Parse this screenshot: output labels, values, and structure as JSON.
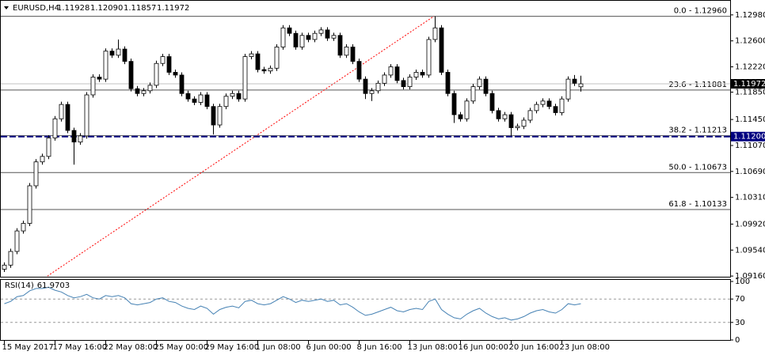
{
  "chart_data": [
    {
      "type": "candlestick",
      "title": "EURUSD,H4",
      "header_labels": [
        "1.11928",
        "1.12090",
        "1.11857",
        "1.11972"
      ],
      "categories": [
        "15 May 2017",
        null,
        null,
        null,
        null,
        null,
        null,
        null,
        "17 May 16:00",
        null,
        null,
        null,
        null,
        null,
        null,
        null,
        "22 May 08:00",
        null,
        null,
        null,
        null,
        null,
        null,
        null,
        "25 May 00:00",
        null,
        null,
        null,
        null,
        null,
        null,
        null,
        "29 May 16:00",
        null,
        null,
        null,
        null,
        null,
        null,
        null,
        "1 Jun 08:00",
        null,
        null,
        null,
        null,
        null,
        null,
        null,
        "6 Jun 00:00",
        null,
        null,
        null,
        null,
        null,
        null,
        null,
        "8 Jun 16:00",
        null,
        null,
        null,
        null,
        null,
        null,
        null,
        "13 Jun 08:00",
        null,
        null,
        null,
        null,
        null,
        null,
        null,
        "16 Jun 00:00",
        null,
        null,
        null,
        null,
        null,
        null,
        null,
        "20 Jun 16:00",
        null,
        null,
        null,
        null,
        null,
        null,
        null,
        "23 Jun 08:00",
        null,
        null,
        null
      ],
      "open": [
        1.0926,
        1.0932,
        1.0952,
        1.0982,
        1.0993,
        1.1048,
        1.1083,
        1.1091,
        1.1118,
        1.1146,
        1.1167,
        1.1129,
        1.1112,
        1.1121,
        1.1181,
        1.1207,
        1.1204,
        1.1245,
        1.1239,
        1.1248,
        1.123,
        1.119,
        1.1183,
        1.1187,
        1.1195,
        1.1227,
        1.1237,
        1.1214,
        1.121,
        1.1183,
        1.1175,
        1.117,
        1.1181,
        1.1164,
        1.1137,
        1.1164,
        1.1179,
        1.1183,
        1.1175,
        1.1237,
        1.1241,
        1.1218,
        1.1216,
        1.122,
        1.1251,
        1.1279,
        1.1271,
        1.1251,
        1.1268,
        1.1262,
        1.1271,
        1.1276,
        1.1264,
        1.1268,
        1.1239,
        1.1251,
        1.123,
        1.1204,
        1.1183,
        1.1187,
        1.1198,
        1.121,
        1.1222,
        1.1202,
        1.1193,
        1.1207,
        1.1214,
        1.121,
        1.1262,
        1.1279,
        1.1214,
        1.1183,
        1.1152,
        1.1146,
        1.1172,
        1.1193,
        1.1204,
        1.1183,
        1.1158,
        1.1146,
        1.1152,
        1.1133,
        1.1135,
        1.1144,
        1.1158,
        1.1167,
        1.1172,
        1.1164,
        1.1155,
        1.1175,
        1.1204,
        1.11928
      ],
      "high": [
        1.0936,
        1.0956,
        1.0986,
        1.0997,
        1.1052,
        1.1087,
        1.1095,
        1.1122,
        1.115,
        1.1171,
        1.1171,
        1.1133,
        1.1125,
        1.1185,
        1.1211,
        1.1211,
        1.1249,
        1.1249,
        1.1262,
        1.1252,
        1.1234,
        1.1194,
        1.1191,
        1.1199,
        1.1231,
        1.1241,
        1.1241,
        1.1218,
        1.1214,
        1.1187,
        1.1179,
        1.1185,
        1.1185,
        1.1168,
        1.1168,
        1.1183,
        1.1187,
        1.1187,
        1.1241,
        1.1245,
        1.1245,
        1.1222,
        1.1224,
        1.1255,
        1.1283,
        1.1283,
        1.1275,
        1.1272,
        1.1272,
        1.1275,
        1.128,
        1.128,
        1.1272,
        1.1272,
        1.1255,
        1.1255,
        1.1234,
        1.1208,
        1.1191,
        1.1202,
        1.1214,
        1.1226,
        1.1226,
        1.1206,
        1.1211,
        1.1218,
        1.1218,
        1.1266,
        1.1296,
        1.1283,
        1.1218,
        1.1187,
        1.1156,
        1.1176,
        1.1197,
        1.1208,
        1.1208,
        1.1187,
        1.1162,
        1.1156,
        1.1156,
        1.1139,
        1.1148,
        1.1162,
        1.1171,
        1.1176,
        1.1176,
        1.1168,
        1.1179,
        1.1208,
        1.121,
        1.1209
      ],
      "low": [
        1.0922,
        1.0928,
        1.0948,
        1.0978,
        1.0989,
        1.1044,
        1.1079,
        1.1087,
        1.1114,
        1.1142,
        1.1125,
        1.1079,
        1.1108,
        1.1117,
        1.1177,
        1.12,
        1.12,
        1.1235,
        1.1235,
        1.1226,
        1.1186,
        1.1179,
        1.1179,
        1.1183,
        1.1191,
        1.1223,
        1.121,
        1.1206,
        1.1179,
        1.1171,
        1.1166,
        1.1166,
        1.116,
        1.1123,
        1.1133,
        1.116,
        1.1175,
        1.1171,
        1.1171,
        1.1233,
        1.1214,
        1.1212,
        1.1212,
        1.1216,
        1.1247,
        1.1267,
        1.1247,
        1.1247,
        1.1258,
        1.1258,
        1.1267,
        1.126,
        1.126,
        1.1235,
        1.1235,
        1.1226,
        1.12,
        1.1175,
        1.1172,
        1.1183,
        1.1194,
        1.1206,
        1.1198,
        1.1189,
        1.1189,
        1.1203,
        1.1206,
        1.1206,
        1.1258,
        1.121,
        1.1179,
        1.114,
        1.1142,
        1.1142,
        1.1168,
        1.1189,
        1.1179,
        1.1154,
        1.1142,
        1.1142,
        1.1121,
        1.1129,
        1.1131,
        1.114,
        1.1154,
        1.1163,
        1.116,
        1.1151,
        1.1151,
        1.1171,
        1.1194,
        1.11857
      ],
      "close": [
        1.0932,
        1.0952,
        1.0982,
        1.0993,
        1.1048,
        1.1083,
        1.1091,
        1.1118,
        1.1146,
        1.1167,
        1.1129,
        1.1112,
        1.1121,
        1.1181,
        1.1207,
        1.1204,
        1.1245,
        1.1239,
        1.1248,
        1.123,
        1.119,
        1.1183,
        1.1187,
        1.1195,
        1.1227,
        1.1237,
        1.1214,
        1.121,
        1.1183,
        1.1175,
        1.117,
        1.1181,
        1.1164,
        1.1137,
        1.1164,
        1.1179,
        1.1183,
        1.1175,
        1.1237,
        1.1241,
        1.1218,
        1.1216,
        1.122,
        1.1251,
        1.1279,
        1.1271,
        1.1251,
        1.1268,
        1.1262,
        1.1271,
        1.1276,
        1.1264,
        1.1268,
        1.1239,
        1.1251,
        1.123,
        1.1204,
        1.1183,
        1.1187,
        1.1198,
        1.121,
        1.1222,
        1.1202,
        1.1193,
        1.1207,
        1.1214,
        1.121,
        1.1262,
        1.1279,
        1.1214,
        1.1183,
        1.1152,
        1.1146,
        1.1172,
        1.1193,
        1.1204,
        1.1183,
        1.1158,
        1.1146,
        1.1152,
        1.1133,
        1.1135,
        1.1144,
        1.1158,
        1.1167,
        1.1172,
        1.1164,
        1.1155,
        1.1175,
        1.1204,
        1.1198,
        1.11972
      ],
      "up_color": "#ffffff",
      "down_color": "#000000",
      "ylim": [
        1.0915,
        1.1314
      ],
      "yticks": [
        {
          "value": 1.1298,
          "label": "1.12980"
        },
        {
          "value": 1.126,
          "label": "1.12600"
        },
        {
          "value": 1.1222,
          "label": "1.12220"
        },
        {
          "value": 1.1185,
          "label": "1.11850"
        },
        {
          "value": 1.1145,
          "label": "1.11450"
        },
        {
          "value": 1.1107,
          "label": "1.11070"
        },
        {
          "value": 1.1069,
          "label": "1.10690"
        },
        {
          "value": 1.1031,
          "label": "1.10310"
        },
        {
          "value": 1.0992,
          "label": "1.09920"
        },
        {
          "value": 1.0954,
          "label": "1.09540"
        },
        {
          "value": 1.0916,
          "label": "1.09160"
        }
      ],
      "fib_levels": [
        {
          "value": 1.1296,
          "label": "0.0 - 1.12960"
        },
        {
          "value": 1.11881,
          "label": "23.6 - 1.11881"
        },
        {
          "value": 1.11213,
          "label": "38.2 - 1.11213"
        },
        {
          "value": 1.10673,
          "label": "50.0 - 1.10673"
        },
        {
          "value": 1.10133,
          "label": "61.8 - 1.10133"
        }
      ],
      "levels": [
        {
          "value": 1.112,
          "label": "1.11200",
          "color": "#000080"
        }
      ],
      "last_price": 1.11972,
      "trendline": {
        "x": [
          6.8,
          67.8
        ],
        "y": [
          1.0916,
          1.1296
        ],
        "color": "#ff0000"
      }
    },
    {
      "type": "line",
      "name": "RSI(14)",
      "values": [
        62,
        66,
        74,
        76,
        84,
        88,
        88,
        90,
        85,
        82,
        76,
        72,
        74,
        78,
        72,
        70,
        76,
        74,
        76,
        72,
        62,
        60,
        62,
        64,
        70,
        72,
        66,
        64,
        58,
        54,
        52,
        58,
        54,
        44,
        52,
        56,
        58,
        55,
        66,
        68,
        62,
        60,
        62,
        68,
        74,
        70,
        64,
        68,
        66,
        68,
        70,
        66,
        68,
        60,
        62,
        56,
        48,
        42,
        44,
        48,
        52,
        56,
        50,
        48,
        52,
        54,
        52,
        66,
        70,
        52,
        44,
        38,
        36,
        44,
        50,
        54,
        46,
        40,
        36,
        38,
        34,
        36,
        40,
        46,
        50,
        52,
        48,
        46,
        52,
        62,
        60,
        61.9703
      ],
      "color": "#4682b4",
      "ylim": [
        0,
        100
      ],
      "yticks": [
        0,
        30,
        70,
        100
      ],
      "levels": [
        30,
        70
      ]
    }
  ]
}
